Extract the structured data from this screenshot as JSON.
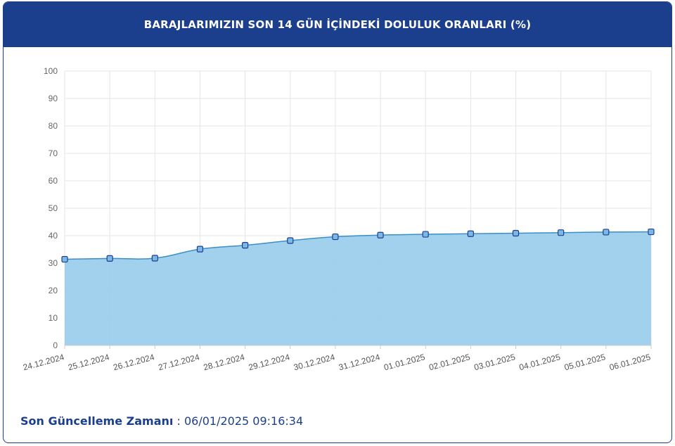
{
  "header": {
    "title": "BARAJLARIMIZIN SON 14 GÜN İÇİNDEKİ DOLULUK ORANLARI (%)"
  },
  "footer": {
    "label": "Son Güncelleme Zamanı",
    "separator": " : ",
    "value": "06/01/2025 09:16:34"
  },
  "colors": {
    "header_bg": "#1c3f8d",
    "area_fill": "#9ccfeb",
    "line": "#3a8fc8",
    "marker_fill": "#7cb8e6",
    "marker_stroke": "#1c3f8d"
  },
  "chart_data": {
    "type": "area",
    "title": "",
    "xlabel": "",
    "ylabel": "",
    "ylim": [
      0,
      100
    ],
    "yticks": [
      0,
      10,
      20,
      30,
      40,
      50,
      60,
      70,
      80,
      90,
      100
    ],
    "grid": true,
    "categories": [
      "24.12.2024",
      "25.12.2024",
      "26.12.2024",
      "27.12.2024",
      "28.12.2024",
      "29.12.2024",
      "30.12.2024",
      "31.12.2024",
      "01.01.2025",
      "02.01.2025",
      "03.01.2025",
      "04.01.2025",
      "05.01.2025",
      "06.01.2025"
    ],
    "series": [
      {
        "values": [
          31.4,
          31.7,
          31.8,
          35.1,
          36.5,
          38.2,
          39.6,
          40.2,
          40.5,
          40.7,
          40.9,
          41.1,
          41.3,
          41.4
        ]
      }
    ]
  }
}
